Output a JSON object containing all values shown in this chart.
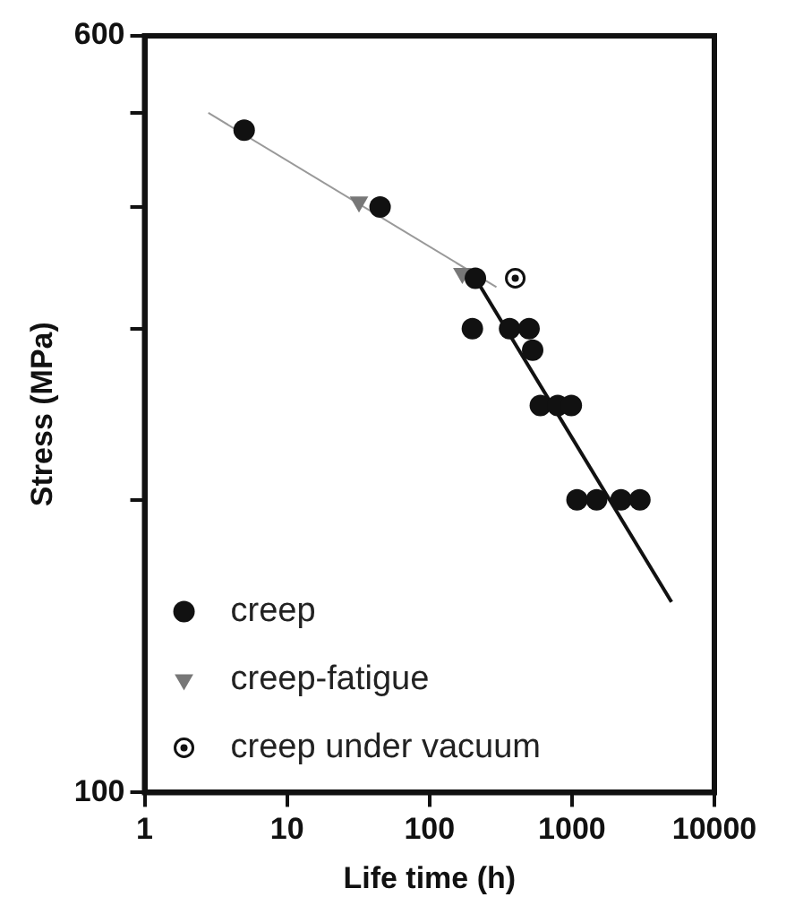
{
  "chart_data": {
    "type": "scatter",
    "xlabel": "Life time (h)",
    "ylabel": "Stress (MPa)",
    "log": "xy",
    "xlim": [
      1,
      10000
    ],
    "xticks": [
      1,
      10,
      100,
      1000,
      10000
    ],
    "ylim": [
      100,
      600
    ],
    "yticks": [
      100,
      {
        "value": 200,
        "label": null
      },
      {
        "value": 300,
        "label": null
      },
      {
        "value": 400,
        "label": null
      },
      {
        "value": 500,
        "label": null
      },
      600
    ],
    "grid": false,
    "legend": "bottom left",
    "series": [
      {
        "name": "creep",
        "color": "#111111",
        "marker": "circle",
        "x": [
          5,
          45,
          210,
          200,
          365,
          500,
          530,
          600,
          795,
          990,
          1085,
          1490,
          2210,
          3000
        ],
        "values": [
          480,
          400,
          338,
          300,
          300,
          300,
          285,
          250,
          250,
          250,
          200,
          200,
          200,
          200
        ]
      },
      {
        "name": "creep-fatigue",
        "color": "#777777",
        "marker": "triangle",
        "x": [
          32,
          170
        ],
        "values": [
          405,
          342
        ]
      },
      {
        "name": "creep under vacuum",
        "color": "#111111",
        "marker": "circle-dot",
        "x": [
          400
        ],
        "values": [
          338
        ]
      },
      {
        "type": "line",
        "color": "#999999",
        "marker": "none",
        "x": [
          2.8,
          295
        ],
        "values": [
          500,
          331
        ]
      },
      {
        "type": "line",
        "color": "#111111",
        "marker": "none",
        "x": [
          210,
          5000
        ],
        "values": [
          338,
          157
        ]
      }
    ]
  }
}
